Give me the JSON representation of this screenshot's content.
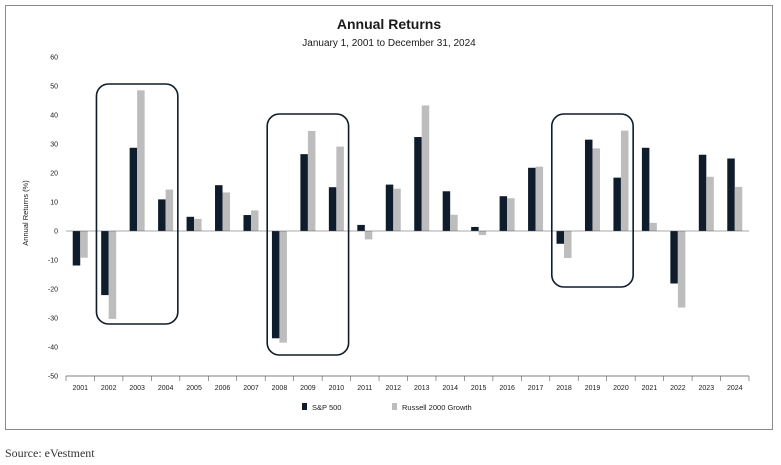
{
  "chart_data": {
    "type": "bar",
    "title": "Annual Returns",
    "subtitle": "January 1, 2001 to December 31, 2024",
    "xlabel": "",
    "ylabel": "Annual Returns (%)",
    "ylim": [
      -50,
      60
    ],
    "yticks": [
      "60",
      "50",
      "40",
      "30",
      "20",
      "10",
      "0",
      "-10",
      "-20",
      "-30",
      "-40",
      "-50"
    ],
    "grid": false,
    "legend_position": "bottom",
    "categories": [
      "2001",
      "2002",
      "2003",
      "2004",
      "2005",
      "2006",
      "2007",
      "2008",
      "2009",
      "2010",
      "2011",
      "2012",
      "2013",
      "2014",
      "2015",
      "2016",
      "2017",
      "2018",
      "2019",
      "2020",
      "2021",
      "2022",
      "2023",
      "2024"
    ],
    "series": [
      {
        "name": "S&P 500",
        "color": "#0f1c2b",
        "values": [
          -11.9,
          -22.1,
          28.7,
          10.9,
          4.9,
          15.8,
          5.5,
          -37.0,
          26.5,
          15.1,
          2.1,
          16.0,
          32.4,
          13.7,
          1.4,
          12.0,
          21.8,
          -4.4,
          31.5,
          18.4,
          28.7,
          -18.1,
          26.3,
          25.0
        ]
      },
      {
        "name": "Russell 2000 Growth",
        "color": "#bdbdbd",
        "values": [
          -9.2,
          -30.3,
          48.5,
          14.3,
          4.2,
          13.3,
          7.1,
          -38.5,
          34.5,
          29.1,
          -2.9,
          14.6,
          43.3,
          5.6,
          -1.4,
          11.3,
          22.2,
          -9.3,
          28.5,
          34.6,
          2.8,
          -26.4,
          18.7,
          15.2
        ]
      }
    ],
    "highlight_boxes": [
      {
        "from": "2002",
        "to": "2004"
      },
      {
        "from": "2008",
        "to": "2010"
      },
      {
        "from": "2018",
        "to": "2020"
      }
    ]
  },
  "source": "Source: eVestment"
}
